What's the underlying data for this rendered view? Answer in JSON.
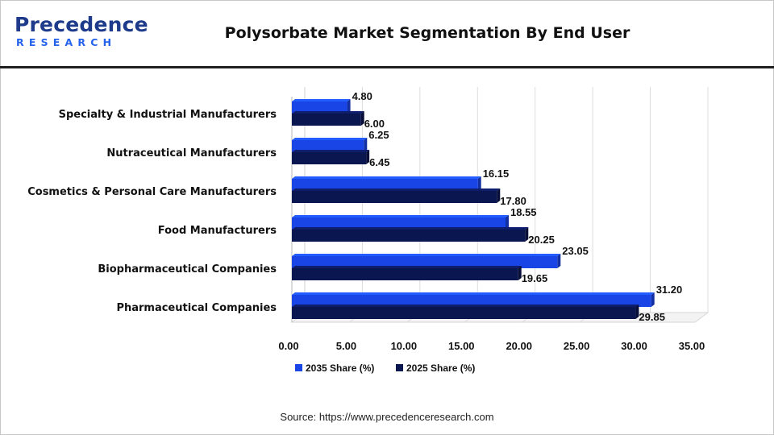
{
  "header": {
    "logo_word": "Precedence",
    "logo_sub": "RESEARCH",
    "title": "Polysorbate Market Segmentation By End User"
  },
  "footer": {
    "source": "Source: https://www.precedenceresearch.com"
  },
  "chart_data": {
    "type": "bar",
    "orientation": "horizontal",
    "title": "Polysorbate Market Segmentation By End User",
    "categories": [
      "Specialty & Industrial Manufacturers",
      "Nutraceutical Manufacturers",
      "Cosmetics & Personal Care Manufacturers",
      "Food Manufacturers",
      "Biopharmaceutical Companies",
      "Pharmaceutical Companies"
    ],
    "series": [
      {
        "name": "2035 Share (%)",
        "color": "#1a45e6",
        "values": [
          4.8,
          6.25,
          16.15,
          18.55,
          23.05,
          31.2
        ]
      },
      {
        "name": "2025 Share (%)",
        "color": "#0a1650",
        "values": [
          6.0,
          6.45,
          17.8,
          20.25,
          19.65,
          29.85
        ]
      }
    ],
    "x_ticks": [
      "0.00",
      "5.00",
      "10.00",
      "15.00",
      "20.00",
      "25.00",
      "30.00",
      "35.00"
    ],
    "xlim": [
      0,
      35
    ],
    "grid": true,
    "legend": "bottom-center",
    "xlabel": "",
    "ylabel": ""
  }
}
